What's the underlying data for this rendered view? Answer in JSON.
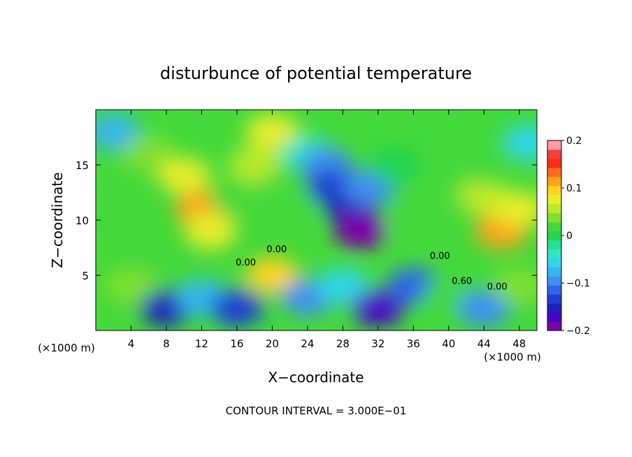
{
  "chart_data": {
    "type": "heatmap",
    "title": "disturbunce of potential temperature",
    "xlabel": "X−coordinate",
    "ylabel": "Z−coordinate",
    "x_unit": "(×1000 m)",
    "x_unit_right": "(×1000 m)",
    "xlim": [
      0,
      50
    ],
    "ylim": [
      0,
      20
    ],
    "x_ticks": [
      4,
      8,
      12,
      16,
      20,
      24,
      28,
      32,
      36,
      40,
      44,
      48
    ],
    "y_ticks": [
      5,
      10,
      15
    ],
    "colorbar": {
      "min": -0.2,
      "max": 0.2,
      "tick_values": [
        0.2,
        0.1,
        0,
        -0.1,
        -0.2
      ],
      "tick_labels": [
        "0.2",
        "0.1",
        "0",
        "−0.1",
        "−0.2"
      ],
      "colors": [
        "#7b00a8",
        "#4a00c8",
        "#1f1fb8",
        "#1a3fd6",
        "#2f63ea",
        "#3f8ff2",
        "#34b6f0",
        "#2ed6e8",
        "#2fe6c4",
        "#27e08a",
        "#22d44e",
        "#44d93a",
        "#7fe02e",
        "#b7ea2c",
        "#e6ee2a",
        "#ffd31f",
        "#ffa21a",
        "#ff6a1a",
        "#ff2a1a",
        "#f2403a",
        "#ff9aa8"
      ]
    },
    "contour_labels": [
      "0.00",
      "0.00",
      "0.00",
      "0.60",
      "0.00"
    ],
    "contour_interval_text": "CONTOUR INTERVAL = 3.000E−01",
    "field_regions": [
      {
        "x": 0,
        "y": 13,
        "value": 0.01
      },
      {
        "x": 2,
        "y": 18,
        "value": -0.07
      },
      {
        "x": 6,
        "y": 16,
        "value": 0.03
      },
      {
        "x": 10,
        "y": 14,
        "value": 0.08
      },
      {
        "x": 12,
        "y": 11,
        "value": 0.11
      },
      {
        "x": 13,
        "y": 9,
        "value": 0.07
      },
      {
        "x": 18,
        "y": 15,
        "value": 0.06
      },
      {
        "x": 20,
        "y": 18,
        "value": 0.07
      },
      {
        "x": 16,
        "y": 12,
        "value": 0.02
      },
      {
        "x": 22,
        "y": 11,
        "value": 0.01
      },
      {
        "x": 24,
        "y": 16,
        "value": -0.04
      },
      {
        "x": 26,
        "y": 15,
        "value": -0.09
      },
      {
        "x": 27,
        "y": 13,
        "value": -0.14
      },
      {
        "x": 29,
        "y": 11,
        "value": -0.16
      },
      {
        "x": 30,
        "y": 9,
        "value": -0.2
      },
      {
        "x": 31,
        "y": 13,
        "value": -0.1
      },
      {
        "x": 34,
        "y": 15,
        "value": 0.0
      },
      {
        "x": 36,
        "y": 10,
        "value": 0.02
      },
      {
        "x": 40,
        "y": 14,
        "value": 0.02
      },
      {
        "x": 44,
        "y": 12,
        "value": 0.06
      },
      {
        "x": 46,
        "y": 9,
        "value": 0.11
      },
      {
        "x": 48,
        "y": 11,
        "value": 0.08
      },
      {
        "x": 49,
        "y": 17,
        "value": -0.05
      },
      {
        "x": 4,
        "y": 4,
        "value": 0.03
      },
      {
        "x": 8,
        "y": 2,
        "value": -0.15
      },
      {
        "x": 12,
        "y": 3,
        "value": -0.08
      },
      {
        "x": 16,
        "y": 2,
        "value": -0.14
      },
      {
        "x": 20,
        "y": 5,
        "value": 0.09
      },
      {
        "x": 24,
        "y": 3,
        "value": -0.1
      },
      {
        "x": 28,
        "y": 4,
        "value": -0.05
      },
      {
        "x": 32,
        "y": 2,
        "value": -0.17
      },
      {
        "x": 36,
        "y": 4,
        "value": -0.12
      },
      {
        "x": 40,
        "y": 3,
        "value": 0.02
      },
      {
        "x": 44,
        "y": 2,
        "value": -0.09
      },
      {
        "x": 48,
        "y": 4,
        "value": 0.04
      }
    ]
  }
}
